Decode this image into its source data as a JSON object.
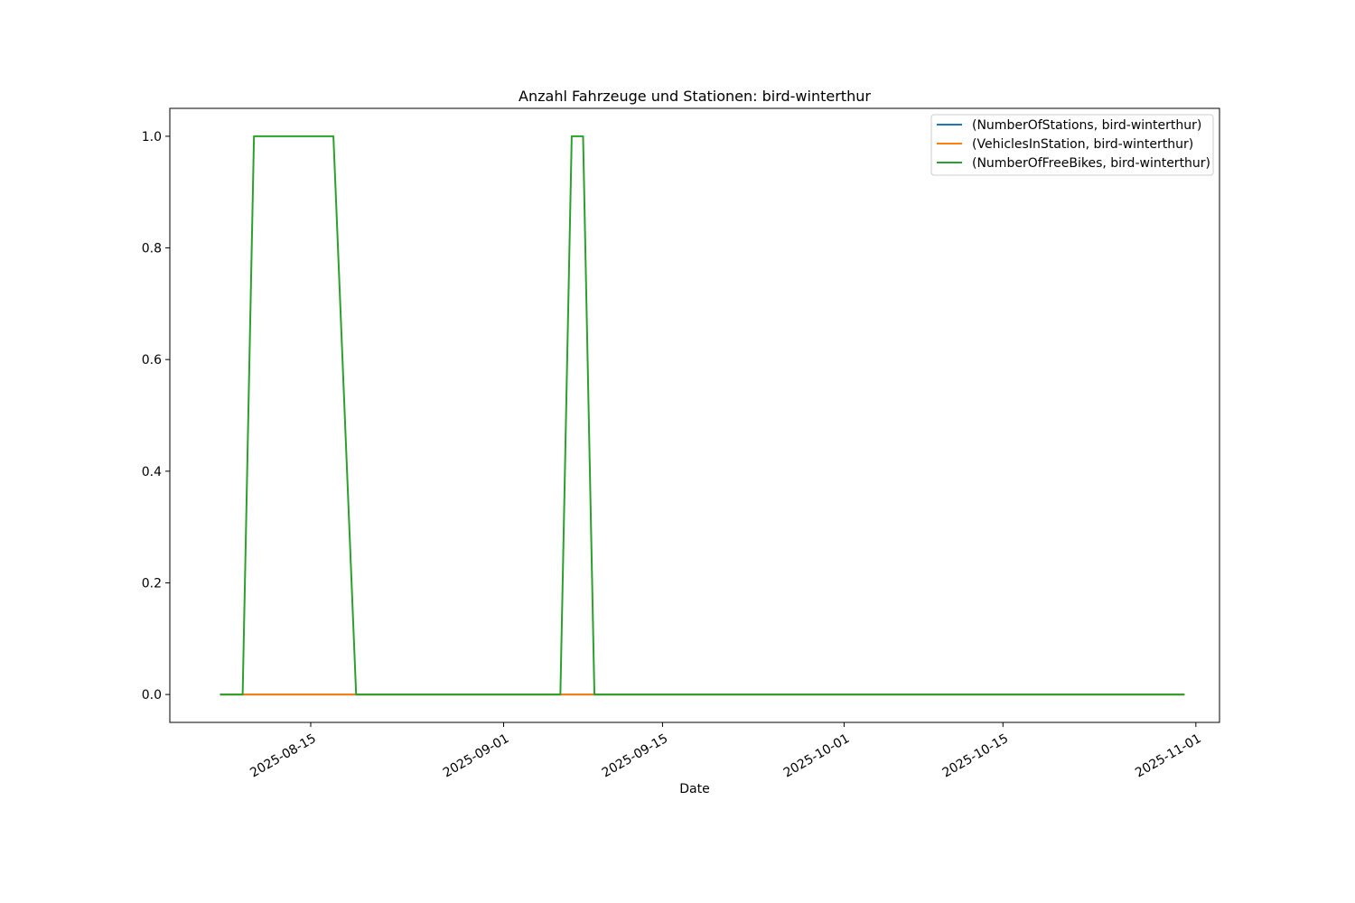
{
  "chart_data": {
    "type": "line",
    "title": "Anzahl Fahrzeuge und Stationen: bird-winterthur",
    "xlabel": "Date",
    "ylabel": "",
    "xlim": [
      "2025-08-02T14:00",
      "2025-11-03T02:00"
    ],
    "ylim": [
      -0.05,
      1.05
    ],
    "grid": false,
    "legend_position": "top-right",
    "x_ticks": [
      "2025-08-15",
      "2025-09-01",
      "2025-09-15",
      "2025-10-01",
      "2025-10-15",
      "2025-11-01"
    ],
    "y_ticks": [
      0.0,
      0.2,
      0.4,
      0.6,
      0.8,
      1.0
    ],
    "y_tick_labels": [
      "0.0",
      "0.2",
      "0.4",
      "0.6",
      "0.8",
      "1.0"
    ],
    "series": [
      {
        "name": "(NumberOfStations, bird-winterthur)",
        "color": "#1f77b4",
        "points": [
          [
            "2025-08-07",
            0
          ],
          [
            "2025-10-31",
            0
          ]
        ]
      },
      {
        "name": "(VehiclesInStation, bird-winterthur)",
        "color": "#ff7f0e",
        "points": [
          [
            "2025-08-07",
            0
          ],
          [
            "2025-10-31",
            0
          ]
        ]
      },
      {
        "name": "(NumberOfFreeBikes, bird-winterthur)",
        "color": "#2ca02c",
        "points": [
          [
            "2025-08-07",
            0
          ],
          [
            "2025-08-09",
            0
          ],
          [
            "2025-08-10",
            1
          ],
          [
            "2025-08-17",
            1
          ],
          [
            "2025-08-19",
            0
          ],
          [
            "2025-09-06",
            0
          ],
          [
            "2025-09-07",
            1
          ],
          [
            "2025-09-08",
            1
          ],
          [
            "2025-09-09",
            0
          ],
          [
            "2025-10-31",
            0
          ]
        ]
      }
    ]
  }
}
